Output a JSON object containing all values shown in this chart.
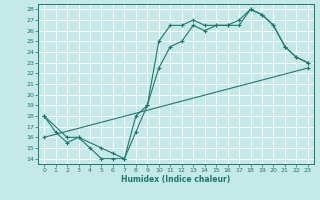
{
  "xlabel": "Humidex (Indice chaleur)",
  "bg_color": "#c5e8e8",
  "grid_color": "#ffffff",
  "line_color": "#1a7a6e",
  "xlim": [
    -0.5,
    23.5
  ],
  "ylim": [
    13.5,
    28.5
  ],
  "xticks": [
    0,
    1,
    2,
    3,
    4,
    5,
    6,
    7,
    8,
    9,
    10,
    11,
    12,
    13,
    14,
    15,
    16,
    17,
    18,
    19,
    20,
    21,
    22,
    23
  ],
  "yticks": [
    14,
    15,
    16,
    17,
    18,
    19,
    20,
    21,
    22,
    23,
    24,
    25,
    26,
    27,
    28
  ],
  "line1_x": [
    0,
    1,
    2,
    3,
    4,
    5,
    6,
    7,
    8,
    9,
    10,
    11,
    12,
    13,
    14,
    15,
    16,
    17,
    18,
    19,
    20,
    21,
    22,
    23
  ],
  "line1_y": [
    18,
    16.5,
    15.5,
    16,
    15,
    14,
    14,
    14,
    16.5,
    19,
    25,
    26.5,
    26.5,
    27,
    26.5,
    26.5,
    26.5,
    26.5,
    28,
    27.5,
    26.5,
    24.5,
    23.5,
    23
  ],
  "line2_x": [
    0,
    2,
    3,
    5,
    6,
    7,
    8,
    9,
    10,
    11,
    12,
    13,
    14,
    15,
    16,
    17,
    18,
    19,
    20,
    21,
    22,
    23
  ],
  "line2_y": [
    18,
    16,
    16,
    15,
    14.5,
    14,
    18,
    19,
    22.5,
    24.5,
    25,
    26.5,
    26,
    26.5,
    26.5,
    27,
    28,
    27.5,
    26.5,
    24.5,
    23.5,
    23
  ],
  "line3_x": [
    0,
    23
  ],
  "line3_y": [
    16,
    22.5
  ]
}
